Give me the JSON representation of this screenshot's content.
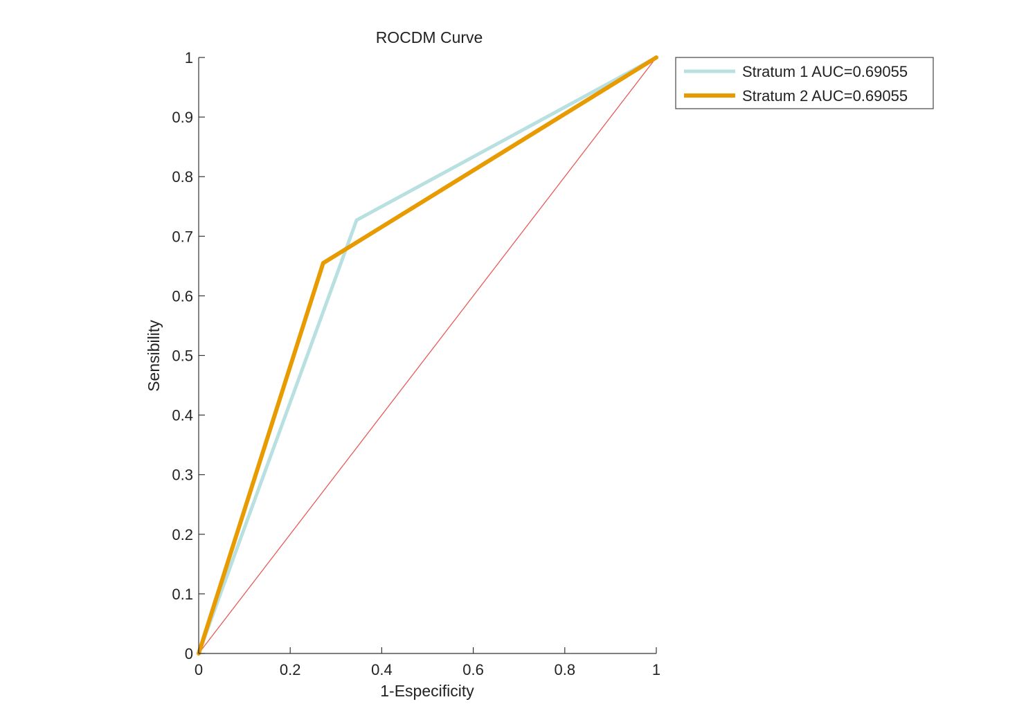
{
  "chart_data": {
    "type": "line",
    "title": "ROCDM Curve",
    "xlabel": "1-Especificity",
    "ylabel": "Sensibility",
    "xlim": [
      0,
      1
    ],
    "ylim": [
      0,
      1
    ],
    "xticks": [
      "0",
      "0.2",
      "0.4",
      "0.6",
      "0.8",
      "1"
    ],
    "yticks": [
      "0",
      "0.1",
      "0.2",
      "0.3",
      "0.4",
      "0.5",
      "0.6",
      "0.7",
      "0.8",
      "0.9",
      "1"
    ],
    "grid": false,
    "legend_position": "outside-top-right",
    "series": [
      {
        "name": "Stratum 1 AUC=0.69055",
        "color": "#b8e0e0",
        "x": [
          0,
          0.345,
          1
        ],
        "y": [
          0,
          0.727,
          1
        ]
      },
      {
        "name": "Stratum 2 AUC=0.69055",
        "color": "#e89b00",
        "x": [
          0,
          0.272,
          1
        ],
        "y": [
          0,
          0.655,
          1
        ]
      }
    ],
    "reference_line": {
      "color": "#e85a5a",
      "x": [
        0,
        1
      ],
      "y": [
        0,
        1
      ]
    }
  }
}
